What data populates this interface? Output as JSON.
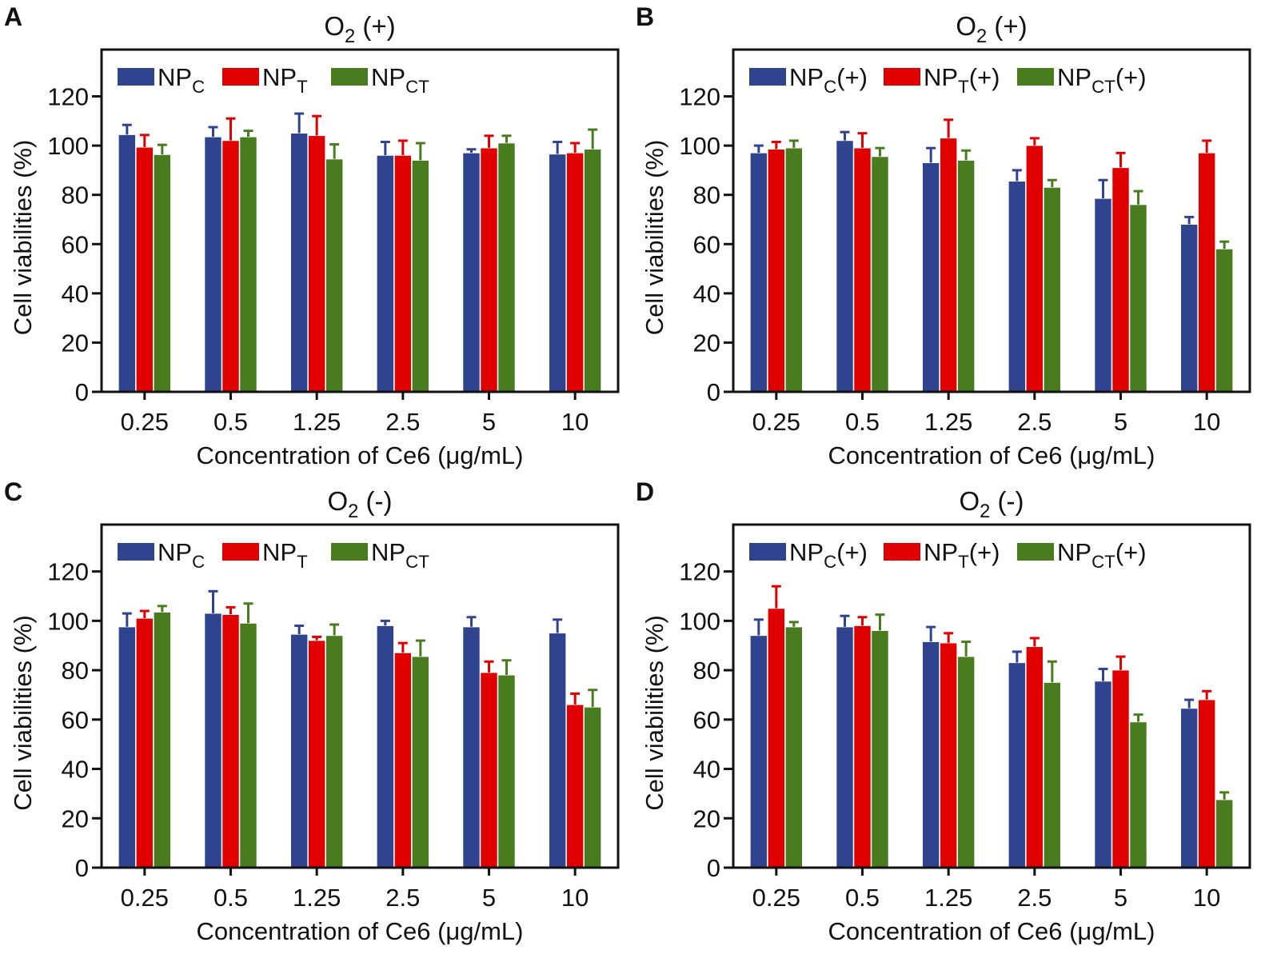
{
  "colors": {
    "NP_C": "#30438f",
    "NP_T": "#e00000",
    "NP_CT": "#487c1f"
  },
  "chart_data": [
    {
      "panel": "A",
      "type": "bar",
      "title": {
        "main": "O",
        "sub": "2",
        "suffix": " (+)"
      },
      "xlabel": "Concentration of Ce6 (μg/mL)",
      "ylabel": "Cell viabilities (%)",
      "ylim": [
        0,
        139
      ],
      "yticks": [
        0,
        20,
        40,
        60,
        80,
        100,
        120
      ],
      "categories": [
        "0.25",
        "0.5",
        "1.25",
        "2.5",
        "5",
        "10"
      ],
      "legend_position": "top-left",
      "series": [
        {
          "name": {
            "main": "NP",
            "sub": "C",
            "suffix": ""
          },
          "key": "NP_C",
          "values": [
            104.4,
            103.5,
            105,
            96,
            97,
            96.5
          ],
          "errors": [
            4,
            4,
            8,
            5.5,
            1.5,
            5
          ]
        },
        {
          "name": {
            "main": "NP",
            "sub": "T",
            "suffix": ""
          },
          "key": "NP_T",
          "values": [
            99.3,
            102,
            104,
            96,
            99,
            97
          ],
          "errors": [
            5,
            9,
            8,
            6,
            5,
            4
          ]
        },
        {
          "name": {
            "main": "NP",
            "sub": "CT",
            "suffix": ""
          },
          "key": "NP_CT",
          "values": [
            96.3,
            103.5,
            94.5,
            94,
            101,
            98.5
          ],
          "errors": [
            4,
            2.5,
            6,
            7,
            3,
            8
          ]
        }
      ]
    },
    {
      "panel": "B",
      "type": "bar",
      "title": {
        "main": "O",
        "sub": "2",
        "suffix": " (+)"
      },
      "xlabel": "Concentration of Ce6 (μg/mL)",
      "ylabel": "Cell viabilities (%)",
      "ylim": [
        0,
        139
      ],
      "yticks": [
        0,
        20,
        40,
        60,
        80,
        100,
        120
      ],
      "categories": [
        "0.25",
        "0.5",
        "1.25",
        "2.5",
        "5",
        "10"
      ],
      "legend_position": "top-left",
      "series": [
        {
          "name": {
            "main": "NP",
            "sub": "C",
            "suffix": "(+)"
          },
          "key": "NP_C",
          "values": [
            97,
            102,
            93,
            85.5,
            78.5,
            68
          ],
          "errors": [
            3,
            3.5,
            6,
            4.5,
            7.5,
            3
          ]
        },
        {
          "name": {
            "main": "NP",
            "sub": "T",
            "suffix": "(+)"
          },
          "key": "NP_T",
          "values": [
            98.5,
            99,
            103,
            100,
            91,
            97
          ],
          "errors": [
            3,
            6,
            7.5,
            3,
            6,
            5
          ]
        },
        {
          "name": {
            "main": "NP",
            "sub": "CT",
            "suffix": "(+)"
          },
          "key": "NP_CT",
          "values": [
            99,
            95.5,
            94,
            83,
            76,
            58
          ],
          "errors": [
            3,
            3.5,
            4,
            3,
            5.5,
            3
          ]
        }
      ]
    },
    {
      "panel": "C",
      "type": "bar",
      "title": {
        "main": "O",
        "sub": "2",
        "suffix": " (-)"
      },
      "xlabel": "Concentration of Ce6 (μg/mL)",
      "ylabel": "Cell viabilities (%)",
      "ylim": [
        0,
        139
      ],
      "yticks": [
        0,
        20,
        40,
        60,
        80,
        100,
        120
      ],
      "categories": [
        "0.25",
        "0.5",
        "1.25",
        "2.5",
        "5",
        "10"
      ],
      "legend_position": "top-left",
      "series": [
        {
          "name": {
            "main": "NP",
            "sub": "C",
            "suffix": ""
          },
          "key": "NP_C",
          "values": [
            97.5,
            103,
            94.5,
            98,
            97.5,
            95
          ],
          "errors": [
            5.5,
            9,
            3.5,
            2,
            4,
            5.5
          ]
        },
        {
          "name": {
            "main": "NP",
            "sub": "T",
            "suffix": ""
          },
          "key": "NP_T",
          "values": [
            101,
            102.5,
            92,
            87,
            79,
            66
          ],
          "errors": [
            3,
            3,
            1.5,
            4,
            4.5,
            4.5
          ]
        },
        {
          "name": {
            "main": "NP",
            "sub": "CT",
            "suffix": ""
          },
          "key": "NP_CT",
          "values": [
            103.5,
            99,
            94,
            85.5,
            78,
            65
          ],
          "errors": [
            2.5,
            8,
            4.5,
            6.5,
            6,
            7
          ]
        }
      ]
    },
    {
      "panel": "D",
      "type": "bar",
      "title": {
        "main": "O",
        "sub": "2",
        "suffix": " (-)"
      },
      "xlabel": "Concentration of Ce6 (μg/mL)",
      "ylabel": "Cell viabilities (%)",
      "ylim": [
        0,
        139
      ],
      "yticks": [
        0,
        20,
        40,
        60,
        80,
        100,
        120
      ],
      "categories": [
        "0.25",
        "0.5",
        "1.25",
        "2.5",
        "5",
        "10"
      ],
      "legend_position": "top-left",
      "series": [
        {
          "name": {
            "main": "NP",
            "sub": "C",
            "suffix": "(+)"
          },
          "key": "NP_C",
          "values": [
            94,
            97.5,
            91.5,
            83,
            75.5,
            64.5
          ],
          "errors": [
            6.5,
            4.5,
            6,
            4.5,
            5,
            3.5
          ]
        },
        {
          "name": {
            "main": "NP",
            "sub": "T",
            "suffix": "(+)"
          },
          "key": "NP_T",
          "values": [
            105,
            98,
            91,
            89.5,
            80,
            68
          ],
          "errors": [
            9,
            3.5,
            4,
            3.5,
            5.5,
            3.5
          ]
        },
        {
          "name": {
            "main": "NP",
            "sub": "CT",
            "suffix": "(+)"
          },
          "key": "NP_CT",
          "values": [
            97.5,
            96,
            85.5,
            75,
            59,
            27.5
          ],
          "errors": [
            2,
            6.5,
            6,
            8.5,
            3,
            3
          ]
        }
      ]
    }
  ]
}
